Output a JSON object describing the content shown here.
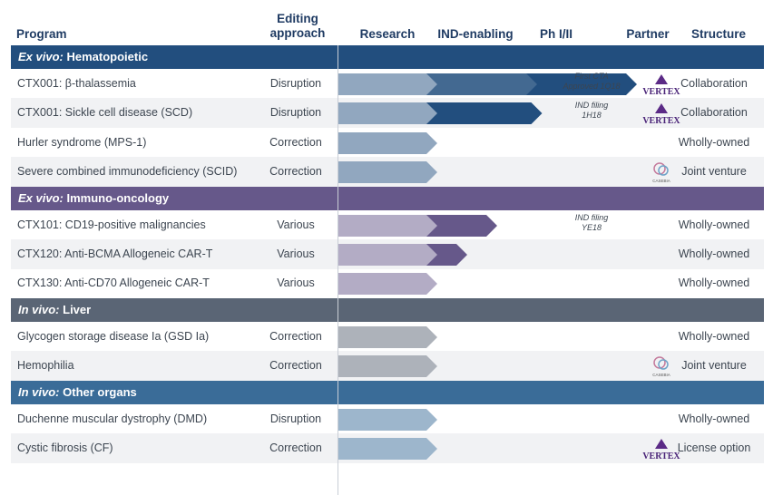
{
  "header": {
    "program": "Program",
    "editing_approach": "Editing approach",
    "research": "Research",
    "ind_enabling": "IND-enabling",
    "ph": "Ph I/II",
    "partner": "Partner",
    "structure": "Structure"
  },
  "colors": {
    "hematopoietic": "#224e7e",
    "immuno_oncology": "#66588a",
    "liver": "#5a6575",
    "other_organs": "#3a6c98"
  },
  "chart_data": {
    "type": "table",
    "stages": [
      "Research",
      "IND-enabling",
      "Ph I/II"
    ],
    "sections": [
      {
        "title_italic": "Ex vivo:",
        "title_rest": " Hematopoietic",
        "color": "#224e7e",
        "programs": [
          {
            "name": "CTX001: β-thalassemia",
            "approach": "Disruption",
            "progress": 3,
            "note": [
              "First CTA",
              "Approved 1Q18"
            ],
            "partner": "VERTEX",
            "structure": "Collaboration"
          },
          {
            "name": "CTX001: Sickle cell disease (SCD)",
            "approach": "Disruption",
            "progress": 2.05,
            "note": [
              "IND filing",
              "1H18"
            ],
            "partner": "VERTEX",
            "structure": "Collaboration"
          },
          {
            "name": "Hurler syndrome (MPS-1)",
            "approach": "Correction",
            "progress": 1,
            "note": [],
            "partner": "",
            "structure": "Wholly-owned"
          },
          {
            "name": "Severe combined immunodeficiency (SCID)",
            "approach": "Correction",
            "progress": 1,
            "note": [],
            "partner": "CASEBIA",
            "structure": "Joint venture"
          }
        ]
      },
      {
        "title_italic": "Ex vivo:",
        "title_rest": " Immuno-oncology",
        "color": "#66588a",
        "programs": [
          {
            "name": "CTX101: CD19-positive malignancies",
            "approach": "Various",
            "progress": 1.6,
            "note": [
              "IND filing",
              "YE18"
            ],
            "partner": "",
            "structure": "Wholly-owned"
          },
          {
            "name": "CTX120: Anti-BCMA Allogeneic CAR-T",
            "approach": "Various",
            "progress": 1.3,
            "note": [],
            "partner": "",
            "structure": "Wholly-owned"
          },
          {
            "name": "CTX130: Anti-CD70 Allogeneic CAR-T",
            "approach": "Various",
            "progress": 1,
            "note": [],
            "partner": "",
            "structure": "Wholly-owned"
          }
        ]
      },
      {
        "title_italic": "In vivo:",
        "title_rest": " Liver",
        "color": "#5a6575",
        "programs": [
          {
            "name": "Glycogen storage disease Ia (GSD Ia)",
            "approach": "Correction",
            "progress": 1,
            "note": [],
            "partner": "",
            "structure": "Wholly-owned"
          },
          {
            "name": "Hemophilia",
            "approach": "Correction",
            "progress": 1,
            "note": [],
            "partner": "CASEBIA",
            "structure": "Joint venture"
          }
        ]
      },
      {
        "title_italic": "In vivo:",
        "title_rest": " Other organs",
        "color": "#3a6c98",
        "programs": [
          {
            "name": "Duchenne muscular dystrophy (DMD)",
            "approach": "Disruption",
            "progress": 1,
            "note": [],
            "partner": "",
            "structure": "Wholly-owned"
          },
          {
            "name": "Cystic fibrosis (CF)",
            "approach": "Correction",
            "progress": 1,
            "note": [],
            "partner": "VERTEX",
            "structure": "License option"
          }
        ]
      }
    ]
  }
}
